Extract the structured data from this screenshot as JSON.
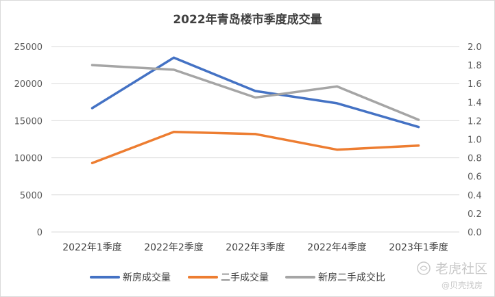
{
  "chart_data": {
    "type": "line",
    "title": "2022年青岛楼市季度成交量",
    "categories": [
      "2022年1季度",
      "2022年2季度",
      "2022年3季度",
      "2022年4季度",
      "2023年1季度"
    ],
    "y_left": {
      "ylim": [
        0,
        25000
      ],
      "ticks": [
        "0",
        "5000",
        "10000",
        "15000",
        "20000",
        "25000"
      ]
    },
    "y_right": {
      "ylim": [
        0,
        2.0
      ],
      "ticks": [
        "0.0",
        "0.2",
        "0.4",
        "0.6",
        "0.8",
        "1.0",
        "1.2",
        "1.4",
        "1.6",
        "1.8",
        "2.0"
      ]
    },
    "grid": true,
    "legend_position": "bottom",
    "series": [
      {
        "name": "新房成交量",
        "axis": "left",
        "color": "#4472c4",
        "values": [
          16700,
          23500,
          19000,
          17350,
          14150
        ]
      },
      {
        "name": "二手成交量",
        "axis": "left",
        "color": "#ed7d31",
        "values": [
          9300,
          13500,
          13200,
          11100,
          11650
        ]
      },
      {
        "name": "新房二手成交比",
        "axis": "right",
        "color": "#a5a5a5",
        "values": [
          1.8,
          1.75,
          1.45,
          1.57,
          1.21
        ]
      }
    ]
  },
  "watermark": {
    "text_main": "老虎社区",
    "text_sub": "@贝壳找房",
    "icon": "tiger-logo-icon"
  }
}
